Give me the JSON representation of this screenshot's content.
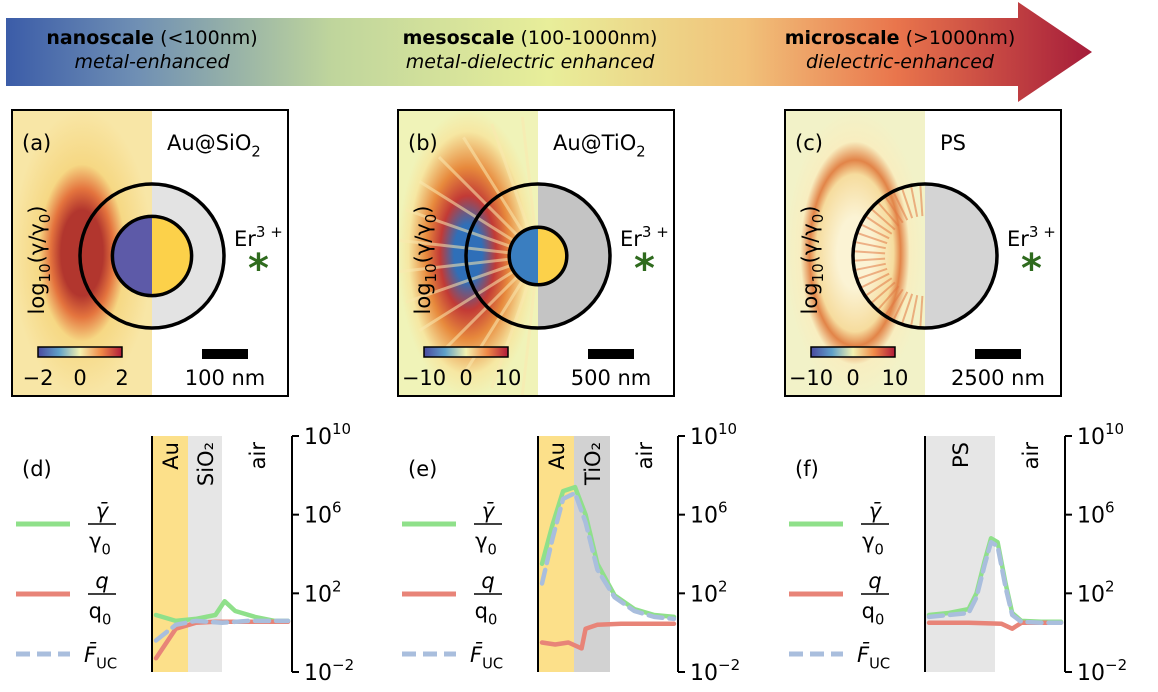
{
  "arrow": {
    "colors": [
      "#3b5ca8",
      "#e8ee9a",
      "#a51c3a"
    ],
    "stages": [
      {
        "name": "nanoscale",
        "range": "(<100nm)",
        "desc": "metal-enhanced"
      },
      {
        "name": "mesoscale",
        "range": "(100-1000nm)",
        "desc": "metal-dielectric enhanced"
      },
      {
        "name": "microscale",
        "range": "(>1000nm)",
        "desc": "dielectric-enhanced"
      }
    ]
  },
  "maps": [
    {
      "panel": "(a)",
      "material": "Au@SiO",
      "material_sub": "2",
      "cbar_ticks": [
        "−2",
        "0",
        "2"
      ],
      "scalebar": "100 nm",
      "core_fraction": 0.55
    },
    {
      "panel": "(b)",
      "material": "Au@TiO",
      "material_sub": "2",
      "cbar_ticks": [
        "−10",
        "0",
        "10"
      ],
      "scalebar": "500 nm",
      "core_fraction": 0.4
    },
    {
      "panel": "(c)",
      "material": "PS",
      "material_sub": "",
      "cbar_ticks": [
        "−10",
        "0",
        "10"
      ],
      "scalebar": "2500 nm",
      "core_fraction": 0
    }
  ],
  "map_common": {
    "ylabel": "log",
    "ylabel_sub": "10",
    "ylabel_tail": "(γ/γ",
    "ylabel_sub2": "0",
    "ylabel_end": ")",
    "emitter": "Er",
    "emitter_sup": "3 +",
    "emitter_mark": "*"
  },
  "profiles": [
    {
      "panel": "(d)",
      "layers": [
        "Au",
        "SiO₂",
        "air"
      ]
    },
    {
      "panel": "(e)",
      "layers": [
        "Au",
        "TiO₂",
        "air"
      ]
    },
    {
      "panel": "(f)",
      "layers": [
        "PS",
        "air"
      ]
    }
  ],
  "legend": {
    "gamma_num": "γ̄",
    "gamma_den": "γ",
    "gamma_den_sub": "0",
    "q_num": "q",
    "q_den": "q",
    "q_den_sub": "0",
    "fuc": "F̄",
    "fuc_sub": "UC",
    "colors": {
      "gamma": "#8fe08a",
      "q": "#e88478",
      "fuc": "#a9bedd"
    }
  },
  "y_axis": {
    "ticks": [
      {
        "base": "10",
        "exp": "10"
      },
      {
        "base": "10",
        "exp": "6"
      },
      {
        "base": "10",
        "exp": "2"
      },
      {
        "base": "10",
        "exp": "−2"
      }
    ],
    "log_range": [
      -2,
      10
    ]
  },
  "chart_data": [
    {
      "type": "line",
      "panel": "(d)",
      "yscale": "log",
      "ylim": [
        0.01,
        10000000000.0
      ],
      "series": [
        {
          "name": "γ̄/γ₀",
          "x": [
            0.0,
            0.15,
            0.3,
            0.45,
            0.52,
            0.6,
            0.75,
            0.9,
            1.0
          ],
          "log10_y": [
            0.9,
            0.6,
            0.7,
            0.9,
            1.6,
            1.1,
            0.8,
            0.6,
            0.6
          ]
        },
        {
          "name": "q/q₀",
          "x": [
            0.0,
            0.15,
            0.3,
            0.45,
            0.6,
            0.8,
            1.0
          ],
          "log10_y": [
            -1.3,
            0.2,
            0.5,
            0.55,
            0.55,
            0.55,
            0.55
          ]
        },
        {
          "name": "F̄_UC",
          "x": [
            0.0,
            0.15,
            0.3,
            0.5,
            0.7,
            1.0
          ],
          "log10_y": [
            -0.4,
            0.4,
            0.6,
            0.5,
            0.6,
            0.6
          ]
        }
      ]
    },
    {
      "type": "line",
      "panel": "(e)",
      "yscale": "log",
      "ylim": [
        0.01,
        10000000000.0
      ],
      "series": [
        {
          "name": "γ̄/γ₀",
          "x": [
            0.0,
            0.08,
            0.16,
            0.25,
            0.33,
            0.42,
            0.55,
            0.7,
            0.85,
            1.0
          ],
          "log10_y": [
            3.5,
            5.5,
            7.2,
            7.4,
            6.0,
            3.5,
            1.9,
            1.2,
            0.9,
            0.8
          ]
        },
        {
          "name": "q/q₀",
          "x": [
            0.0,
            0.1,
            0.2,
            0.3,
            0.33,
            0.42,
            0.6,
            0.8,
            1.0
          ],
          "log10_y": [
            -0.5,
            -0.6,
            -0.5,
            -0.8,
            0.2,
            0.4,
            0.45,
            0.45,
            0.45
          ]
        },
        {
          "name": "F̄_UC",
          "x": [
            0.0,
            0.08,
            0.16,
            0.25,
            0.33,
            0.42,
            0.55,
            0.7,
            0.85,
            1.0
          ],
          "log10_y": [
            2.5,
            4.8,
            6.8,
            7.1,
            5.6,
            3.2,
            1.8,
            1.1,
            0.8,
            0.7
          ]
        }
      ]
    },
    {
      "type": "line",
      "panel": "(f)",
      "yscale": "log",
      "ylim": [
        0.01,
        10000000000.0
      ],
      "series": [
        {
          "name": "γ̄/γ₀",
          "x": [
            0.0,
            0.15,
            0.3,
            0.36,
            0.42,
            0.47,
            0.52,
            0.58,
            0.63,
            0.7,
            0.85,
            1.0
          ],
          "log10_y": [
            0.9,
            1.0,
            1.2,
            2.0,
            3.6,
            4.8,
            4.6,
            2.5,
            1.0,
            0.6,
            0.55,
            0.55
          ]
        },
        {
          "name": "q/q₀",
          "x": [
            0.0,
            0.3,
            0.55,
            0.63,
            0.7,
            0.85,
            1.0
          ],
          "log10_y": [
            0.5,
            0.5,
            0.45,
            0.2,
            0.5,
            0.5,
            0.5
          ]
        },
        {
          "name": "F̄_UC",
          "x": [
            0.0,
            0.15,
            0.3,
            0.36,
            0.42,
            0.47,
            0.52,
            0.58,
            0.63,
            0.7,
            0.85,
            1.0
          ],
          "log10_y": [
            0.8,
            0.9,
            1.0,
            1.8,
            3.4,
            4.6,
            4.4,
            2.3,
            0.9,
            0.55,
            0.5,
            0.5
          ]
        }
      ]
    }
  ]
}
